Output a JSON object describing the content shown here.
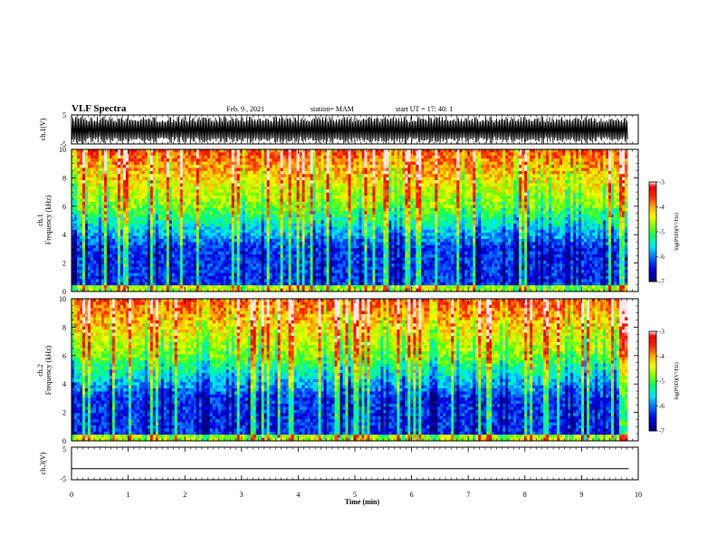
{
  "header": {
    "title": "VLF Spectra",
    "date": "Feb. 9 , 2021",
    "station": "station= MAM",
    "start_ut": "start UT =   17: 40: 1"
  },
  "colors": {
    "spectrum": [
      "#7a007a",
      "#00008b",
      "#0000ff",
      "#1e90ff",
      "#00ffff",
      "#00ff00",
      "#7fff00",
      "#ffff00",
      "#ffa500",
      "#ff0000",
      "#ffffff"
    ],
    "frame": "#000000"
  },
  "chart_data": [
    {
      "type": "line",
      "panel": "waveform-ch1",
      "ylabel": "ch.1(V)",
      "ylim": [
        -5,
        5
      ],
      "yticks": [
        "5",
        "-5"
      ],
      "description_series": "dense oscillating waveform",
      "amplitude_range": [
        -4.5,
        4.5
      ]
    },
    {
      "type": "heatmap",
      "panel": "spectrogram-ch1",
      "ylabel": "ch.1\nFrequency (kHz)",
      "ylabel_lines": [
        "ch.1",
        "Frequency (kHz)"
      ],
      "ylim": [
        0,
        10
      ],
      "yticks": [
        "0",
        "2",
        "4",
        "6",
        "8",
        "10"
      ],
      "colorbar": {
        "label": "log(PSD)(V²/Hz)",
        "range": [
          -7,
          -3
        ],
        "ticks": [
          "-3",
          "-4",
          "-5",
          "-6",
          "-7"
        ]
      }
    },
    {
      "type": "heatmap",
      "panel": "spectrogram-ch2",
      "ylabel": "ch.2\nFrequency (kHz)",
      "ylabel_lines": [
        "ch.2",
        "Frequency (kHz)"
      ],
      "ylim": [
        0,
        10
      ],
      "yticks": [
        "0",
        "2",
        "4",
        "6",
        "8",
        "10"
      ],
      "colorbar": {
        "label": "log(PSD)(V²/Hz)",
        "range": [
          -7,
          -3
        ],
        "ticks": [
          "-3",
          "-4",
          "-5",
          "-6",
          "-7"
        ]
      }
    },
    {
      "type": "line",
      "panel": "waveform-ch3",
      "ylabel": "ch.3(V)",
      "ylim": [
        -5,
        5
      ],
      "yticks": [
        "5",
        "-5"
      ],
      "x": [
        0,
        9.83
      ],
      "y": [
        -1.6,
        -1.6
      ]
    }
  ],
  "xaxis": {
    "label": "Time (min)",
    "xlim": [
      0,
      10
    ],
    "ticks": [
      "0",
      "1",
      "2",
      "3",
      "4",
      "5",
      "6",
      "7",
      "8",
      "9",
      "10"
    ]
  }
}
